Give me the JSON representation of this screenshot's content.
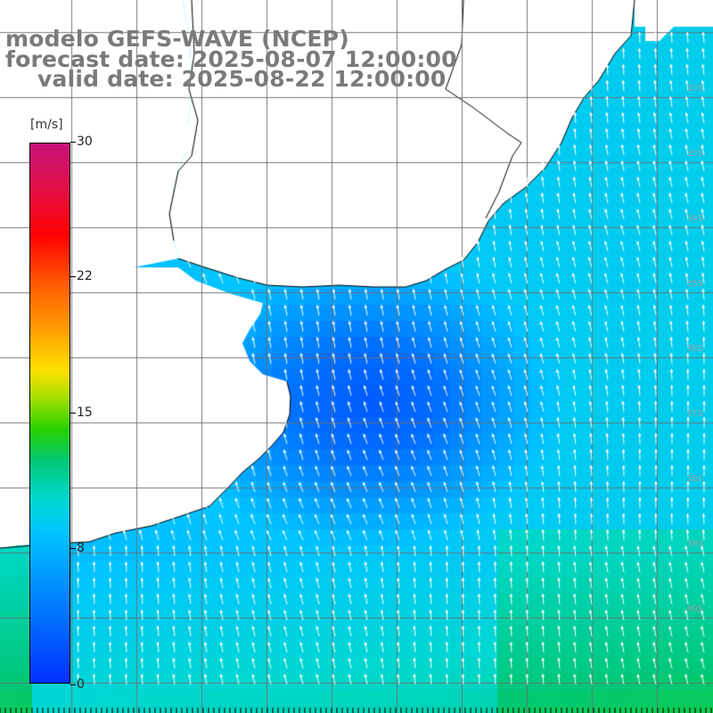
{
  "title": {
    "line1": "modelo GEFS-WAVE (NCEP)",
    "line2": "forecast date: 2025-08-07 12:00:00",
    "line3": "valid date: 2025-08-22 12:00:00"
  },
  "colorbar": {
    "unit": "[m/s]",
    "ticks": [
      "30",
      "22",
      "15",
      "8",
      "0"
    ],
    "tick_values": [
      30,
      22,
      15,
      8,
      0
    ],
    "colors": {
      "low": "#0030ff",
      "mid_low": "#00c4ff",
      "mid": "#28d200",
      "mid_high": "#ffe000",
      "high": "#ff0000",
      "max": "#c8127a"
    }
  },
  "map": {
    "land_color": "#ffffff",
    "coastline_color": "#000000",
    "grid_color": "#808080",
    "arrow_color": "#ffffff",
    "latitude_labels": [
      "32S",
      "33S",
      "34S",
      "35S",
      "36S",
      "37S",
      "38S",
      "39S",
      "40S"
    ],
    "grid": true
  }
}
